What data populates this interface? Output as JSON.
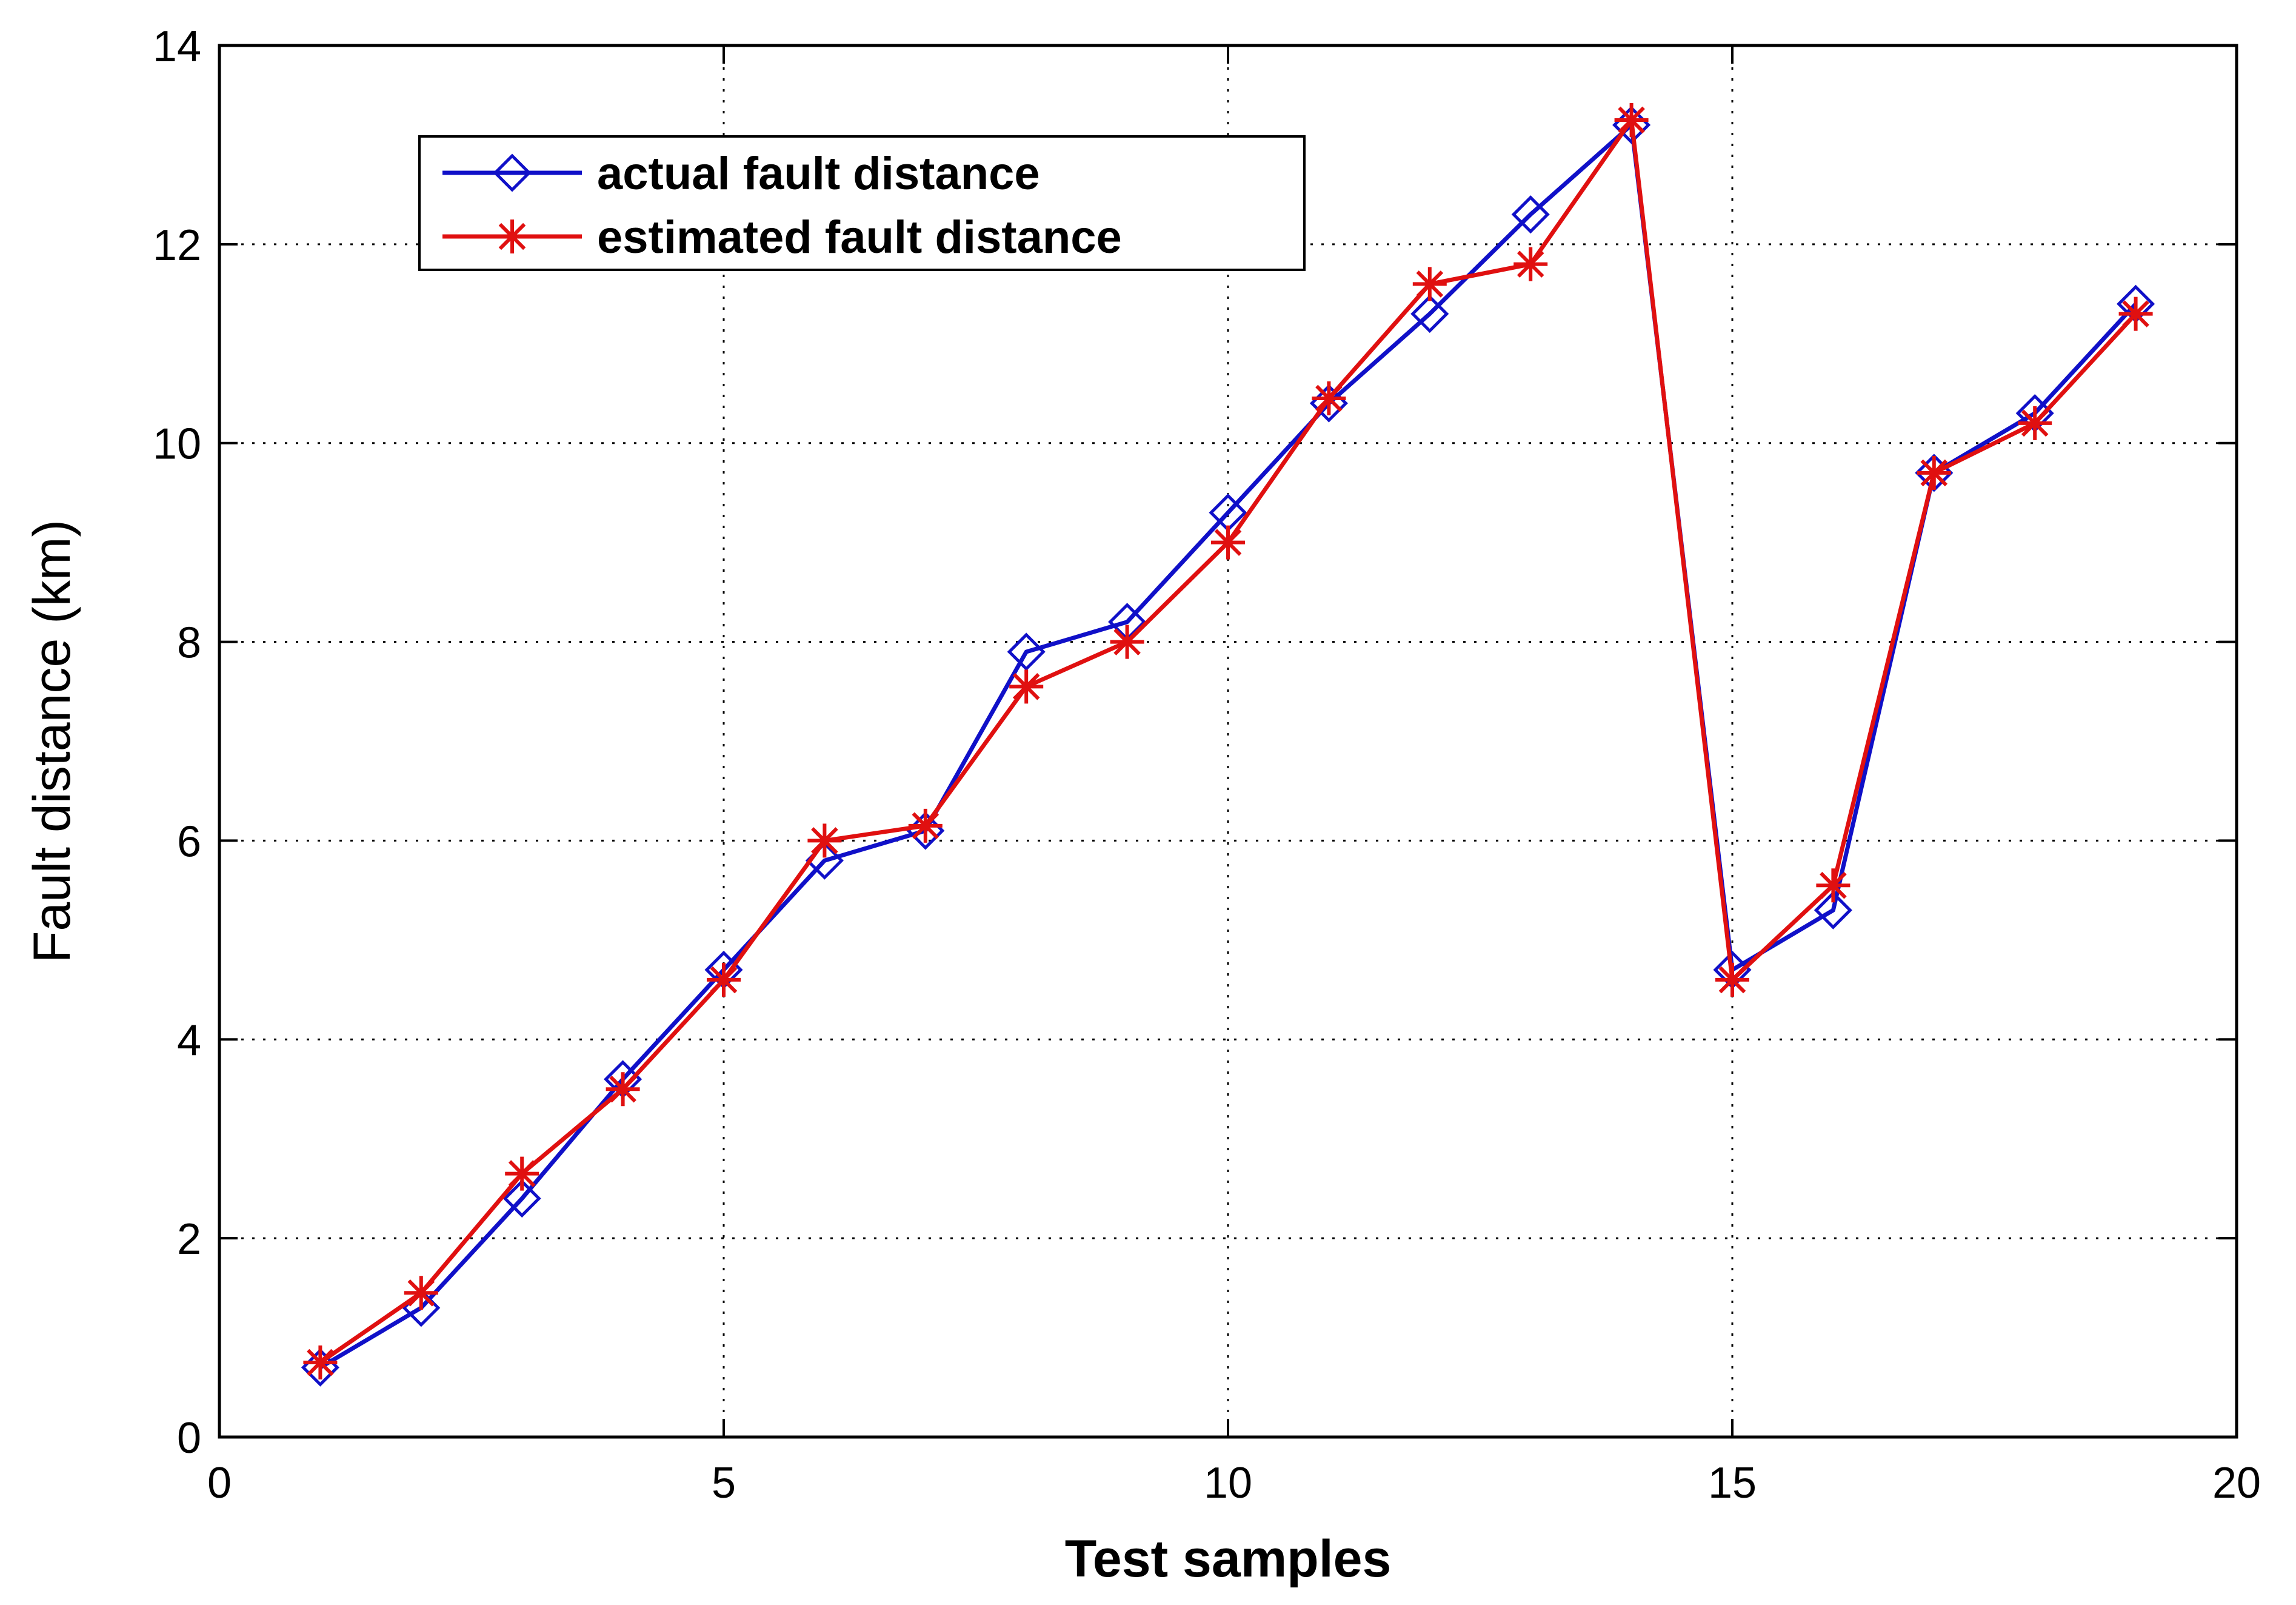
{
  "chart_data": {
    "type": "line",
    "title": "",
    "xlabel": "Test samples",
    "ylabel": "Fault distance (km)",
    "xlim": [
      0,
      20
    ],
    "ylim": [
      0,
      14
    ],
    "xticks": [
      0,
      5,
      10,
      15,
      20
    ],
    "yticks": [
      0,
      2,
      4,
      6,
      8,
      10,
      12,
      14
    ],
    "xtick_labels": [
      "0",
      "5",
      "10",
      "15",
      "20"
    ],
    "ytick_labels": [
      "0",
      "2",
      "4",
      "6",
      "8",
      "10",
      "12",
      "14"
    ],
    "grid": true,
    "legend_position": "top-left",
    "x": [
      1,
      2,
      3,
      4,
      5,
      6,
      7,
      8,
      9,
      10,
      11,
      12,
      13,
      14,
      15,
      16,
      17,
      18,
      19
    ],
    "series": [
      {
        "name": "actual fault distance",
        "color": "#1010c8",
        "marker": "diamond",
        "values": [
          0.7,
          1.3,
          2.4,
          3.6,
          4.7,
          5.8,
          6.1,
          7.9,
          8.2,
          9.3,
          10.4,
          11.3,
          12.3,
          13.2,
          4.7,
          5.3,
          9.7,
          10.3,
          11.4
        ]
      },
      {
        "name": "estimated fault distance",
        "color": "#e01010",
        "marker": "asterisk",
        "values": [
          0.75,
          1.45,
          2.65,
          3.5,
          4.6,
          6.0,
          6.15,
          7.55,
          8.0,
          9.0,
          10.45,
          11.6,
          11.8,
          13.25,
          4.6,
          5.55,
          9.7,
          10.2,
          11.3
        ]
      }
    ]
  }
}
